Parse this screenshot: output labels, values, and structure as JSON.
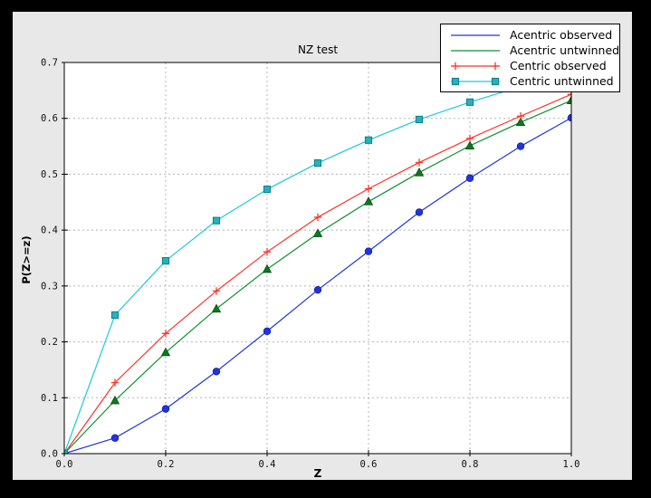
{
  "window": {
    "background": "#000000",
    "figure_background": "#e8e8e8",
    "plot_background": "#ffffff",
    "grid_color": "#b5b5b5"
  },
  "chart_data": {
    "type": "line",
    "title": "NZ test",
    "xlabel": "Z",
    "ylabel": "P(Z>=z)",
    "xlim": [
      0.0,
      1.0
    ],
    "ylim": [
      0.0,
      0.7
    ],
    "xticks": [
      "0.0",
      "0.2",
      "0.4",
      "0.6",
      "0.8",
      "1.0"
    ],
    "yticks": [
      "0.0",
      "0.1",
      "0.2",
      "0.3",
      "0.4",
      "0.5",
      "0.6",
      "0.7"
    ],
    "grid": "dashed major gridlines, on",
    "legend_position": "upper right",
    "x": [
      0.0,
      0.1,
      0.2,
      0.3,
      0.4,
      0.5,
      0.6,
      0.7,
      0.8,
      0.9,
      1.0
    ],
    "series": [
      {
        "name": "Acentric observed",
        "color": "#2135dd",
        "marker": "circle",
        "marker_fill": "#2135dd",
        "marker_edge": "#101fa8",
        "legend_markers": 0,
        "values": [
          0.0,
          0.028,
          0.08,
          0.147,
          0.219,
          0.293,
          0.362,
          0.432,
          0.493,
          0.55,
          0.601
        ]
      },
      {
        "name": "Acentric untwinned",
        "color": "#109030",
        "marker": "triangle",
        "marker_fill": "#0a7a1e",
        "marker_edge": "#064e12",
        "legend_markers": 0,
        "values": [
          0.0,
          0.095,
          0.181,
          0.259,
          0.33,
          0.394,
          0.451,
          0.503,
          0.551,
          0.593,
          0.632
        ]
      },
      {
        "name": "Centric observed",
        "color": "#f8352b",
        "marker": "plus",
        "marker_fill": "#f8352b",
        "marker_edge": "#f8352b",
        "legend_markers": 2,
        "values": [
          0.0,
          0.127,
          0.215,
          0.291,
          0.361,
          0.423,
          0.474,
          0.521,
          0.564,
          0.604,
          0.643
        ]
      },
      {
        "name": "Centric untwinned",
        "color": "#1ec9d6",
        "marker": "square",
        "marker_fill": "#25b2bb",
        "marker_edge": "#0c7f8a",
        "legend_markers": 2,
        "values": [
          0.0,
          0.248,
          0.345,
          0.417,
          0.473,
          0.52,
          0.561,
          0.598,
          0.629,
          0.657,
          0.683
        ]
      }
    ]
  }
}
